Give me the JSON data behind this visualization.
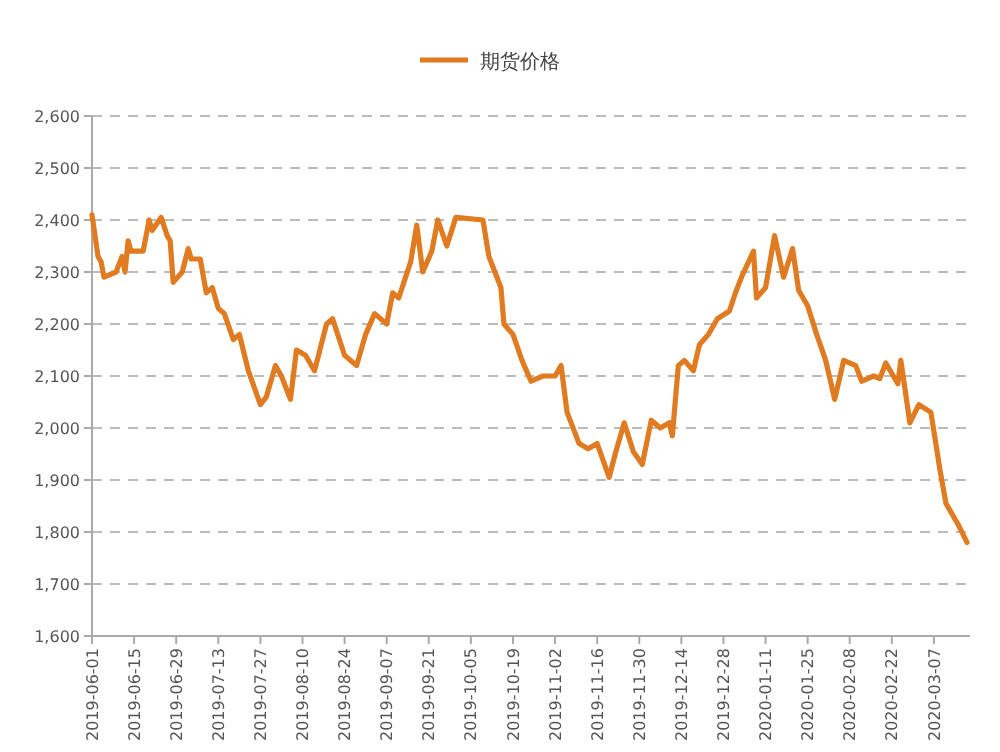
{
  "chart_data": {
    "type": "line",
    "legend": "top",
    "grid": "y",
    "marker": "none",
    "line_style": "solid",
    "xlim": [
      "2019-06-01",
      "2020-03-19"
    ],
    "xticks": [
      "2019-06-01",
      "2019-06-15",
      "2019-06-29",
      "2019-07-13",
      "2019-07-27",
      "2019-08-10",
      "2019-08-24",
      "2019-09-07",
      "2019-09-21",
      "2019-10-05",
      "2019-10-19",
      "2019-11-02",
      "2019-11-16",
      "2019-11-30",
      "2019-12-14",
      "2019-12-28",
      "2020-01-11",
      "2020-01-25",
      "2020-02-08",
      "2020-02-22",
      "2020-03-07"
    ],
    "ylim": [
      1600,
      2600
    ],
    "yticks": [
      {
        "value": 1600,
        "label": "1,600"
      },
      {
        "value": 1700,
        "label": "1,700"
      },
      {
        "value": 1800,
        "label": "1,800"
      },
      {
        "value": 1900,
        "label": "1,900"
      },
      {
        "value": 2000,
        "label": "2,000"
      },
      {
        "value": 2100,
        "label": "2,100"
      },
      {
        "value": 2200,
        "label": "2,200"
      },
      {
        "value": 2300,
        "label": "2,300"
      },
      {
        "value": 2400,
        "label": "2,400"
      },
      {
        "value": 2500,
        "label": "2,500"
      },
      {
        "value": 2600,
        "label": "2,600"
      }
    ],
    "x": [
      "2019-06-01",
      "2019-06-03",
      "2019-06-04",
      "2019-06-05",
      "2019-06-09",
      "2019-06-11",
      "2019-06-12",
      "2019-06-13",
      "2019-06-14",
      "2019-06-18",
      "2019-06-20",
      "2019-06-21",
      "2019-06-24",
      "2019-06-26",
      "2019-06-27",
      "2019-06-28",
      "2019-07-01",
      "2019-07-03",
      "2019-07-04",
      "2019-07-07",
      "2019-07-09",
      "2019-07-11",
      "2019-07-13",
      "2019-07-15",
      "2019-07-18",
      "2019-07-20",
      "2019-07-23",
      "2019-07-27",
      "2019-07-29",
      "2019-08-01",
      "2019-08-03",
      "2019-08-06",
      "2019-08-08",
      "2019-08-11",
      "2019-08-14",
      "2019-08-18",
      "2019-08-20",
      "2019-08-24",
      "2019-08-28",
      "2019-08-31",
      "2019-09-03",
      "2019-09-07",
      "2019-09-09",
      "2019-09-11",
      "2019-09-15",
      "2019-09-17",
      "2019-09-19",
      "2019-09-22",
      "2019-09-24",
      "2019-09-27",
      "2019-09-30",
      "2019-10-09",
      "2019-10-11",
      "2019-10-13",
      "2019-10-15",
      "2019-10-16",
      "2019-10-19",
      "2019-10-22",
      "2019-10-25",
      "2019-10-29",
      "2019-11-02",
      "2019-11-04",
      "2019-11-06",
      "2019-11-10",
      "2019-11-13",
      "2019-11-16",
      "2019-11-20",
      "2019-11-22",
      "2019-11-25",
      "2019-11-28",
      "2019-12-01",
      "2019-12-04",
      "2019-12-07",
      "2019-12-10",
      "2019-12-11",
      "2019-12-13",
      "2019-12-15",
      "2019-12-18",
      "2019-12-20",
      "2019-12-23",
      "2019-12-26",
      "2019-12-30",
      "2020-01-01",
      "2020-01-03",
      "2020-01-07",
      "2020-01-08",
      "2020-01-11",
      "2020-01-14",
      "2020-01-17",
      "2020-01-20",
      "2020-01-22",
      "2020-01-25",
      "2020-01-28",
      "2020-01-31",
      "2020-02-03",
      "2020-02-06",
      "2020-02-10",
      "2020-02-12",
      "2020-02-16",
      "2020-02-18",
      "2020-02-20",
      "2020-02-24",
      "2020-02-25",
      "2020-02-28",
      "2020-03-02",
      "2020-03-06",
      "2020-03-09",
      "2020-03-11",
      "2020-03-15",
      "2020-03-18"
    ],
    "series": [
      {
        "name": "期货价格",
        "color": "#e07b22",
        "values": [
          2410,
          2330,
          2320,
          2290,
          2300,
          2330,
          2300,
          2360,
          2340,
          2340,
          2400,
          2380,
          2405,
          2370,
          2360,
          2280,
          2300,
          2345,
          2325,
          2325,
          2260,
          2270,
          2230,
          2220,
          2170,
          2180,
          2110,
          2045,
          2060,
          2120,
          2100,
          2055,
          2150,
          2140,
          2110,
          2200,
          2210,
          2140,
          2120,
          2180,
          2220,
          2200,
          2260,
          2250,
          2320,
          2390,
          2300,
          2340,
          2400,
          2350,
          2405,
          2400,
          2330,
          2300,
          2270,
          2200,
          2180,
          2130,
          2090,
          2100,
          2100,
          2120,
          2030,
          1970,
          1960,
          1970,
          1905,
          1950,
          2010,
          1955,
          1930,
          2015,
          2000,
          2010,
          1985,
          2120,
          2130,
          2110,
          2160,
          2180,
          2210,
          2225,
          2260,
          2290,
          2340,
          2250,
          2270,
          2370,
          2290,
          2345,
          2265,
          2235,
          2180,
          2130,
          2055,
          2130,
          2120,
          2090,
          2100,
          2095,
          2125,
          2085,
          2130,
          2010,
          2045,
          2030,
          1920,
          1855,
          1815,
          1780
        ]
      }
    ]
  }
}
